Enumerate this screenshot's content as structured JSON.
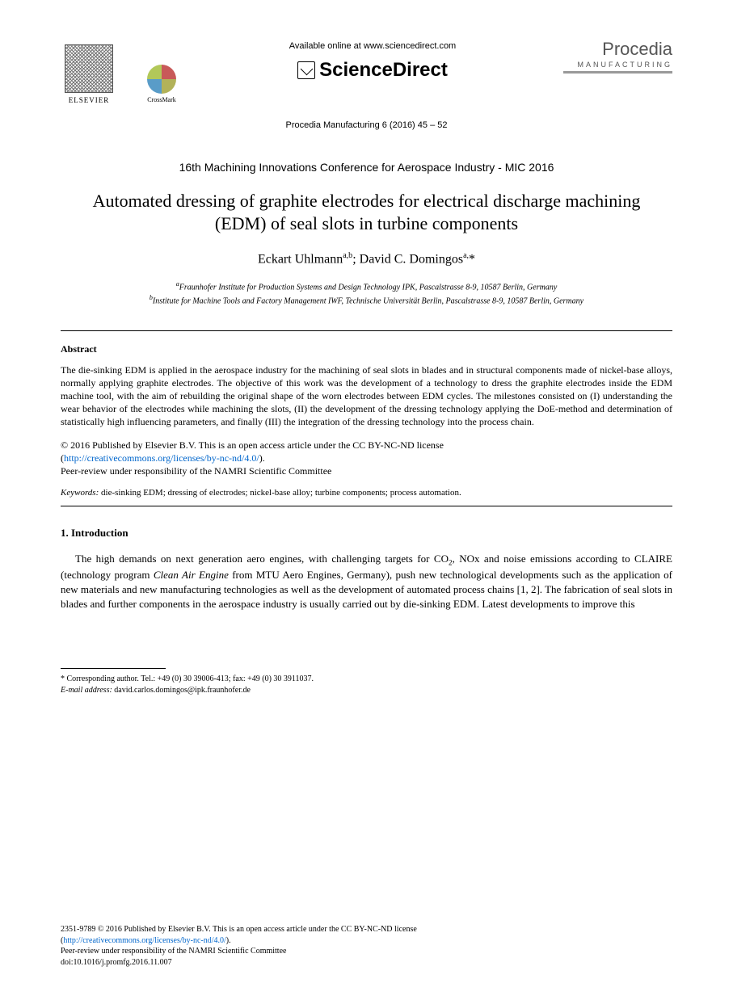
{
  "header": {
    "elsevier_label": "ELSEVIER",
    "crossmark_label": "CrossMark",
    "available_online": "Available online at www.sciencedirect.com",
    "sciencedirect": "ScienceDirect",
    "procedia": "Procedia",
    "procedia_sub": "MANUFACTURING",
    "citation": "Procedia Manufacturing 6 (2016) 45 – 52"
  },
  "conference": "16th Machining Innovations Conference for Aerospace Industry - MIC 2016",
  "title": "Automated dressing of graphite electrodes for electrical discharge machining (EDM) of seal slots in turbine components",
  "authors": {
    "a1_name": "Eckart Uhlmann",
    "a1_aff": "a,b",
    "sep": "; ",
    "a2_name": "David C. Domingos",
    "a2_aff": "a,",
    "a2_corr": "*"
  },
  "affiliations": {
    "a_sup": "a",
    "a_text": "Fraunhofer Institute for Production Systems and Design Technology IPK, Pascalstrasse 8-9, 10587 Berlin, Germany",
    "b_sup": "b",
    "b_text": "Institute for Machine Tools and Factory Management IWF, Technische Universität Berlin, Pascalstrasse 8-9, 10587 Berlin, Germany"
  },
  "abstract": {
    "heading": "Abstract",
    "text": "The die-sinking EDM is applied in the aerospace industry for the machining of seal slots in blades and in structural components made of nickel-base alloys, normally applying graphite electrodes. The objective of this work was the development of a technology to dress the graphite electrodes inside the EDM machine tool, with the aim of rebuilding the original shape of the worn electrodes between EDM cycles. The milestones consisted on (I) understanding the wear behavior of the electrodes while machining the slots, (II) the development of the dressing technology applying the DoE-method and determination of statistically high influencing parameters, and finally (III) the integration of the dressing technology into the process chain."
  },
  "copyright": {
    "line1": "© 2016 Published by Elsevier B.V. This is an open access article under the CC BY-NC-ND license",
    "link_text": "http://creativecommons.org/licenses/by-nc-nd/4.0/",
    "line2": "Peer-review under responsibility of the NAMRI Scientific Committee"
  },
  "keywords": {
    "label": "Keywords:",
    "text": " die-sinking EDM; dressing of electrodes; nickel-base alloy; turbine components; process automation."
  },
  "section1": {
    "heading": "1. Introduction",
    "p1a": "The high demands on next generation aero engines, with challenging targets for CO",
    "p1b": ", NOx and noise emissions according to CLAIRE (technology program ",
    "p1_italic": "Clean Air Engine",
    "p1c": " from MTU Aero Engines, Germany), push new technological developments such as the application of new materials and new manufacturing technologies as well as the development of automated process chains [1, 2]. The fabrication of seal slots in blades and further components in the aerospace industry is usually carried out by die-sinking EDM. Latest developments to improve this"
  },
  "footnote": {
    "corr": "* Corresponding author. Tel.: +49 (0) 30 39006-413; fax: +49 (0) 30 3911037.",
    "email_label": "E-mail address:",
    "email": " david.carlos.domingos@ipk.fraunhofer.de"
  },
  "footer": {
    "issn": "2351-9789 © 2016 Published by Elsevier B.V. This is an open access article under the CC BY-NC-ND license",
    "link_text": "http://creativecommons.org/licenses/by-nc-nd/4.0/",
    "peer": "Peer-review under responsibility of the NAMRI Scientific Committee",
    "doi": "doi:10.1016/j.promfg.2016.11.007"
  }
}
